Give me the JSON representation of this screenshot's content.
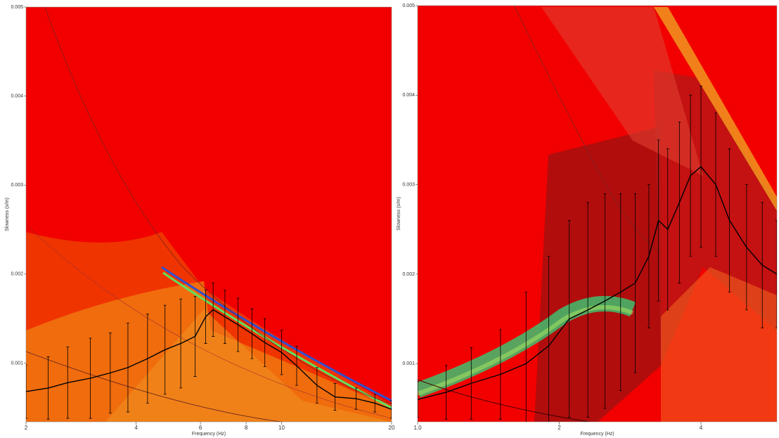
{
  "chart_data": [
    {
      "type": "errorline",
      "x_label": "Frequency (Hz)",
      "y_label": "Slowness (s/m)",
      "xlog": true,
      "xlim": [
        2,
        20
      ],
      "xticks": [
        2,
        4,
        6,
        8,
        10,
        20
      ],
      "ylim": [
        0.00034,
        0.005
      ],
      "yticks": [
        0.001,
        0.002,
        0.003,
        0.004,
        0.005
      ],
      "series": [
        {
          "color": "#000000",
          "x": [
            2,
            2.3,
            2.6,
            3,
            3.4,
            3.8,
            4.3,
            4.8,
            5.3,
            5.8,
            6.2,
            6.5,
            7,
            7.6,
            8.3,
            9,
            10,
            11,
            12.5,
            14,
            16,
            18,
            20
          ],
          "values": [
            0.00068,
            0.00072,
            0.00078,
            0.00083,
            0.00089,
            0.00095,
            0.00105,
            0.00115,
            0.00122,
            0.0013,
            0.00152,
            0.0016,
            0.00152,
            0.00143,
            0.00133,
            0.00123,
            0.00112,
            0.00097,
            0.00075,
            0.00062,
            0.0006,
            0.00055,
            0.00048
          ],
          "errors": [
            0.0003,
            0.00035,
            0.0004,
            0.00045,
            0.00045,
            0.0005,
            0.0005,
            0.0005,
            0.0005,
            0.00045,
            0.0003,
            0.0003,
            0.0003,
            0.0003,
            0.00028,
            0.00027,
            0.00025,
            0.00022,
            0.0002,
            0.00015,
            0.00012,
            0.0001,
            0.0001
          ]
        }
      ]
    },
    {
      "type": "errorline",
      "x_label": "Frequency (Hz)",
      "y_label": "Slowness (s/m)",
      "xlog": true,
      "xlim": [
        1,
        5.8
      ],
      "xticks": [
        {
          "value": 1,
          "label": "1.0"
        },
        2,
        4
      ],
      "ylim": [
        0.00035,
        0.005
      ],
      "yticks": [
        0.001,
        0.002,
        0.003,
        0.004,
        0.005
      ],
      "series": [
        {
          "color": "#000000",
          "x": [
            1.0,
            1.15,
            1.3,
            1.5,
            1.7,
            1.9,
            2.1,
            2.3,
            2.5,
            2.7,
            2.9,
            3.1,
            3.25,
            3.4,
            3.6,
            3.8,
            4.0,
            4.3,
            4.6,
            5.0,
            5.4,
            5.8
          ],
          "values": [
            0.0006,
            0.00068,
            0.00078,
            0.00088,
            0.001,
            0.0012,
            0.0015,
            0.0016,
            0.0017,
            0.0018,
            0.0019,
            0.0022,
            0.0026,
            0.0025,
            0.0028,
            0.0031,
            0.0032,
            0.003,
            0.0026,
            0.0023,
            0.0021,
            0.002
          ],
          "errors": [
            0.0002,
            0.0003,
            0.0004,
            0.0005,
            0.0008,
            0.001,
            0.0011,
            0.0012,
            0.0012,
            0.0011,
            0.001,
            0.0008,
            0.0009,
            0.0009,
            0.0009,
            0.0009,
            0.0009,
            0.0008,
            0.0008,
            0.0007,
            0.0007,
            0.0006
          ]
        }
      ]
    }
  ]
}
